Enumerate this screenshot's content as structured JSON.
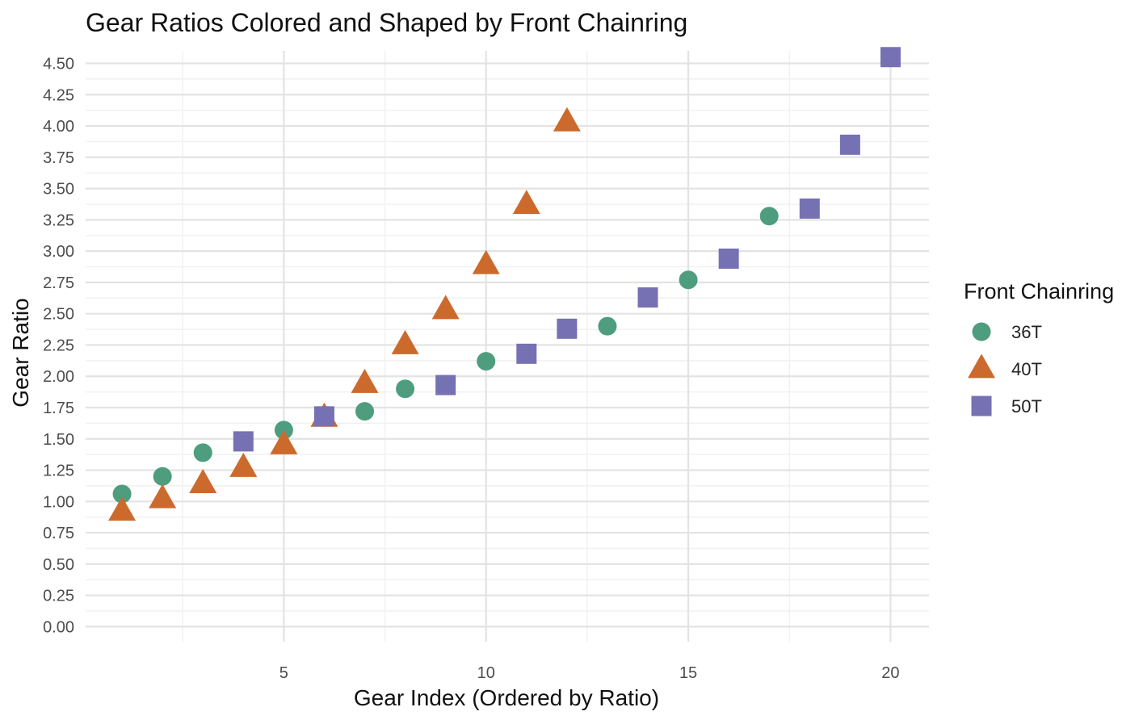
{
  "chart_data": {
    "type": "scatter",
    "title": "Gear Ratios Colored and Shaped by Front Chainring",
    "xlabel": "Gear Index (Ordered by Ratio)",
    "ylabel": "Gear Ratio",
    "xlim": [
      0.1,
      20.95
    ],
    "ylim": [
      -0.12,
      4.6
    ],
    "x_ticks": [
      5,
      10,
      15,
      20
    ],
    "x_tick_labels": [
      "5",
      "10",
      "15",
      "20"
    ],
    "x_minor_ticks": [
      2.5,
      7.5,
      12.5,
      17.5
    ],
    "y_ticks": [
      0,
      0.25,
      0.5,
      0.75,
      1,
      1.25,
      1.5,
      1.75,
      2,
      2.25,
      2.5,
      2.75,
      3,
      3.25,
      3.5,
      3.75,
      4,
      4.25,
      4.5
    ],
    "y_tick_labels": [
      "0.00",
      "0.25",
      "0.50",
      "0.75",
      "1.00",
      "1.25",
      "1.50",
      "1.75",
      "2.00",
      "2.25",
      "2.50",
      "2.75",
      "3.00",
      "3.25",
      "3.50",
      "3.75",
      "4.00",
      "4.25",
      "4.50"
    ],
    "grid": true,
    "legend": {
      "title": "Front Chainring",
      "position": "right"
    },
    "series": [
      {
        "name": "36T",
        "color": "#4e9d7e",
        "shape": "circle",
        "points": [
          [
            1,
            1.06
          ],
          [
            2,
            1.2
          ],
          [
            3,
            1.39
          ],
          [
            5,
            1.57
          ],
          [
            7,
            1.72
          ],
          [
            8,
            1.9
          ],
          [
            10,
            2.12
          ],
          [
            13,
            2.4
          ],
          [
            15,
            2.77
          ],
          [
            17,
            3.28
          ]
        ]
      },
      {
        "name": "40T",
        "color": "#cc6a2e",
        "shape": "triangle",
        "points": [
          [
            1,
            0.92
          ],
          [
            2,
            1.02
          ],
          [
            3,
            1.14
          ],
          [
            4,
            1.27
          ],
          [
            5,
            1.45
          ],
          [
            6,
            1.67
          ],
          [
            7,
            1.94
          ],
          [
            8,
            2.25
          ],
          [
            9,
            2.53
          ],
          [
            10,
            2.89
          ],
          [
            11,
            3.37
          ],
          [
            12,
            4.03
          ]
        ]
      },
      {
        "name": "50T",
        "color": "#7671b3",
        "shape": "square",
        "points": [
          [
            4,
            1.48
          ],
          [
            6,
            1.68
          ],
          [
            9,
            1.93
          ],
          [
            11,
            2.18
          ],
          [
            12,
            2.38
          ],
          [
            14,
            2.63
          ],
          [
            16,
            2.94
          ],
          [
            18,
            3.34
          ],
          [
            19,
            3.85
          ],
          [
            20,
            4.55
          ]
        ]
      }
    ]
  }
}
